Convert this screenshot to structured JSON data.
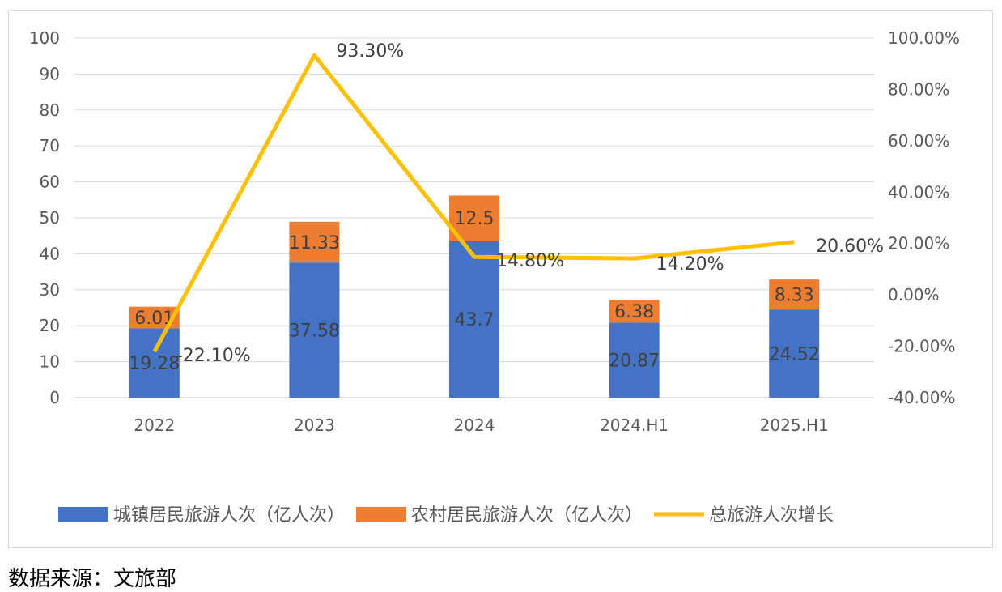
{
  "chart_data": {
    "type": "bar+line",
    "categories": [
      "2022",
      "2023",
      "2024",
      "2024.H1",
      "2025.H1"
    ],
    "series": [
      {
        "name": "城镇居民旅游人次（亿人次）",
        "type": "stacked-bar",
        "axis": "left",
        "color": "#4472C4",
        "values": [
          19.28,
          37.58,
          43.7,
          20.87,
          24.52
        ],
        "labels": [
          "19.28",
          "37.58",
          "43.7",
          "20.87",
          "24.52"
        ]
      },
      {
        "name": "农村居民旅游人次（亿人次）",
        "type": "stacked-bar",
        "axis": "left",
        "color": "#ED7D31",
        "values": [
          6.01,
          11.33,
          12.5,
          6.38,
          8.33
        ],
        "labels": [
          "6.01",
          "11.33",
          "12.5",
          "6.38",
          "8.33"
        ]
      },
      {
        "name": "总旅游人次增长",
        "type": "line",
        "axis": "right",
        "color": "#FFC000",
        "values": [
          -22.1,
          93.3,
          14.8,
          14.2,
          20.6
        ],
        "labels": [
          "-22.10%",
          "93.30%",
          "14.80%",
          "14.20%",
          "20.60%"
        ]
      }
    ],
    "left_axis": {
      "ylim": [
        0,
        100
      ],
      "ticks": [
        "0",
        "10",
        "20",
        "30",
        "40",
        "50",
        "60",
        "70",
        "80",
        "90",
        "100"
      ]
    },
    "right_axis": {
      "ylim": [
        -40,
        100
      ],
      "ticks": [
        "-40.00%",
        "-20.00%",
        "0.00%",
        "20.00%",
        "40.00%",
        "60.00%",
        "80.00%",
        "100.00%"
      ]
    },
    "grid": true,
    "legend": "bottom"
  },
  "source": "数据来源：文旅部"
}
